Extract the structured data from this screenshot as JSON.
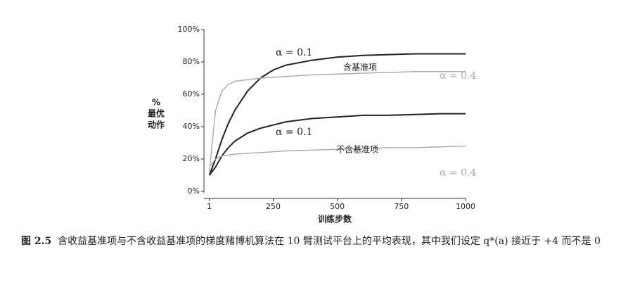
{
  "chart_data": {
    "type": "line",
    "y_label": [
      "%",
      "最优",
      "动作"
    ],
    "x_label": "训练步数",
    "x": [
      1,
      25,
      50,
      75,
      100,
      150,
      200,
      250,
      300,
      400,
      500,
      600,
      700,
      800,
      900,
      1000
    ],
    "series": [
      {
        "name": "α = 0.1",
        "color": "#222222",
        "values": [
          10,
          20,
          32,
          42,
          50,
          62,
          70,
          75,
          78,
          81,
          83,
          84,
          84.5,
          85,
          85,
          85
        ]
      },
      {
        "name": "α = 0.4",
        "color": "#aaaaaa",
        "values": [
          12,
          50,
          62,
          66,
          68,
          69,
          70,
          70.5,
          71,
          72,
          72.5,
          73,
          73.5,
          74,
          74,
          74
        ]
      },
      {
        "name": "α = 0.1",
        "color": "#222222",
        "values": [
          10,
          15,
          22,
          27,
          31,
          36,
          39,
          41,
          43,
          45,
          46,
          47,
          47,
          47.5,
          48,
          48
        ]
      },
      {
        "name": "α = 0.4",
        "color": "#aaaaaa",
        "values": [
          15,
          20,
          22,
          22.5,
          23,
          23.5,
          24,
          24.5,
          25,
          25.5,
          26,
          26.5,
          27,
          27,
          27.5,
          28
        ]
      }
    ],
    "annotations": [
      "含基准项",
      "不含基准项"
    ],
    "xlim": [
      -20,
      1000
    ],
    "ylim": [
      0,
      100
    ],
    "xticks": [
      1,
      250,
      500,
      750,
      1000
    ],
    "yticks": [
      {
        "value": 0,
        "label": "0%"
      },
      {
        "value": 20,
        "label": "20%"
      },
      {
        "value": 40,
        "label": "40%"
      },
      {
        "value": 60,
        "label": "60%"
      },
      {
        "value": 80,
        "label": "80%"
      },
      {
        "value": 100,
        "label": "100%"
      }
    ]
  },
  "caption": {
    "figure": "图 2.5",
    "text": "含收益基准项与不含收益基准项的梯度赌博机算法在 10 臂测试平台上的平均表现，其中我们设定 q*(a) 接近于 +4 而不是 0"
  }
}
